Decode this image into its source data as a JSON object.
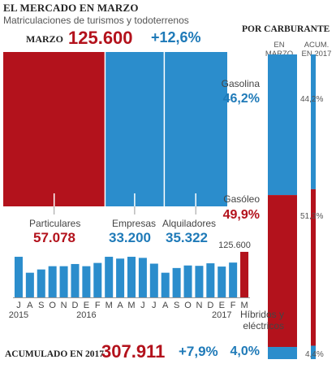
{
  "header": {
    "title": "EL MERCADO EN MARZO",
    "subtitle": "Matriculaciones de turismos y todoterrenos"
  },
  "month": {
    "label": "MARZO",
    "total": "125.600",
    "change": "+12,6%"
  },
  "accumulated": {
    "label": "ACUMULADO EN 2017",
    "total": "307.911",
    "change": "+7,9%"
  },
  "colors": {
    "red": "#b3121c",
    "blue": "#1f7ab8",
    "bar_blue": "#2b8dcc",
    "text": "#444444"
  },
  "chart_data": [
    {
      "type": "bar",
      "stacked_horizontal": true,
      "categories": [
        "Particulares",
        "Empresas",
        "Alquiladores"
      ],
      "values": [
        57078,
        33200,
        35322
      ],
      "value_labels": [
        "57.078",
        "33.200",
        "35.322"
      ],
      "colors": [
        "#b3121c",
        "#2b8dcc",
        "#2b8dcc"
      ],
      "total": 125600
    },
    {
      "type": "bar",
      "categories": [
        "J",
        "A",
        "S",
        "O",
        "N",
        "D",
        "E",
        "F",
        "M",
        "A",
        "M",
        "J",
        "J",
        "A",
        "S",
        "O",
        "N",
        "D",
        "E",
        "F",
        "M"
      ],
      "values": [
        112000,
        68000,
        77000,
        86000,
        86000,
        92000,
        86000,
        95000,
        112000,
        107000,
        112000,
        109000,
        93000,
        68000,
        81000,
        88000,
        87000,
        94000,
        85000,
        96000,
        125600
      ],
      "year_labels": [
        {
          "index": 0,
          "text": "2015"
        },
        {
          "index": 6,
          "text": "2016"
        },
        {
          "index": 18,
          "text": "2017"
        }
      ],
      "last_value_label": "125.600",
      "ylim": [
        0,
        130000
      ]
    },
    {
      "type": "bar",
      "stacked_vertical": true,
      "title": "POR CARBURANTE",
      "column_headers": {
        "marzo": "EN MARZO",
        "acum": "ACUM. EN 2017"
      },
      "categories": [
        "Gasolina",
        "Gasóleo",
        "Híbridos y eléctricos"
      ],
      "series": [
        {
          "name": "EN MARZO",
          "values": [
            46.2,
            49.9,
            4.0
          ],
          "labels": [
            "46,2%",
            "49,9%",
            "4,0%"
          ]
        },
        {
          "name": "ACUM. EN 2017",
          "values": [
            44.2,
            51.3,
            4.4
          ],
          "labels": [
            "44,2%",
            "51,3%",
            "4,4%"
          ]
        }
      ],
      "colors": [
        "#2b8dcc",
        "#b3121c",
        "#2b8dcc"
      ],
      "value_colors": [
        "#1f7ab8",
        "#b3121c",
        "#1f7ab8"
      ]
    }
  ]
}
